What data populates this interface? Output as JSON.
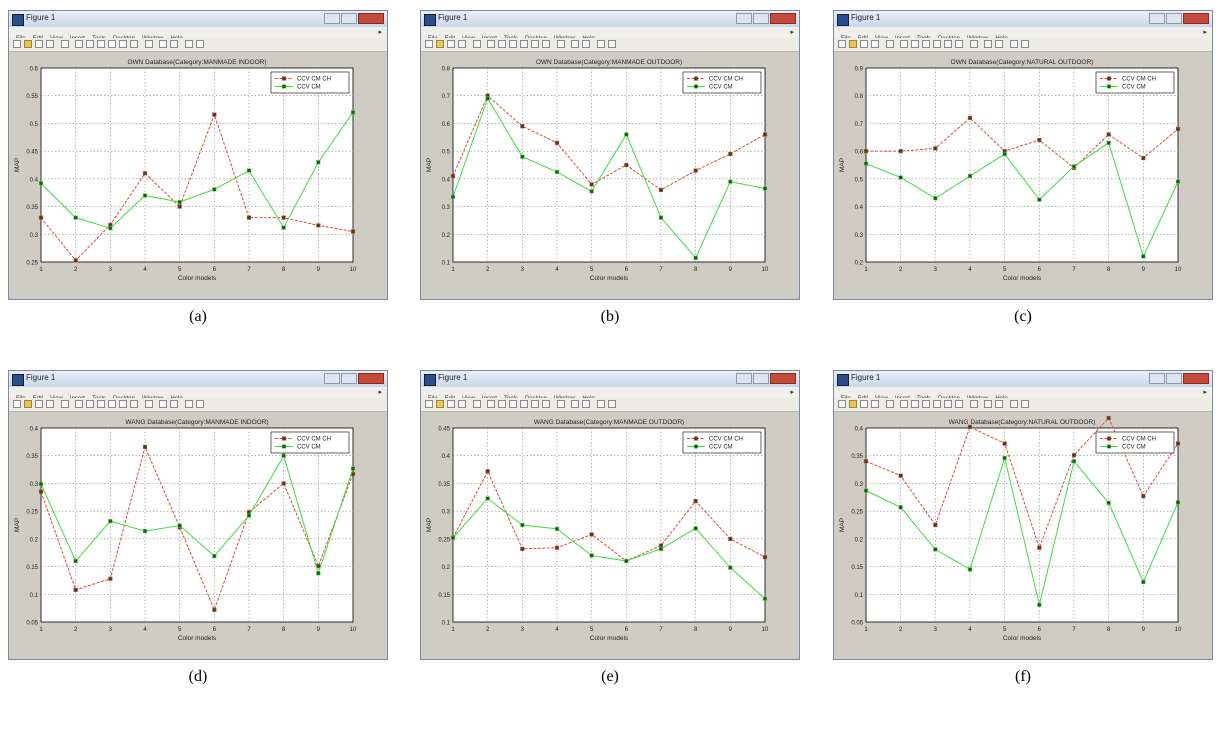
{
  "window_title": "Figure 1",
  "menu": [
    "File",
    "Edit",
    "View",
    "Insert",
    "Tools",
    "Desktop",
    "Window",
    "Help"
  ],
  "colors": {
    "red": "#d94c3a",
    "green": "#3fdc3f",
    "marker": "#2e4a22"
  },
  "panels": [
    {
      "caption": "(a)",
      "chart_data": {
        "type": "line",
        "title": "OWN Database(Category:MANMADE INDOOR)",
        "xlabel": "Color models",
        "ylabel": "MAP",
        "x": [
          1,
          2,
          3,
          4,
          5,
          6,
          7,
          8,
          9,
          10
        ],
        "xticks": [
          "1",
          "2",
          "3",
          "4",
          "5",
          "6",
          "7",
          "8",
          "9",
          "10"
        ],
        "yticks": [
          "0.25",
          "0.3",
          "0.35",
          "0.4",
          "0.45",
          "0.5",
          "0.55",
          "0.6"
        ],
        "ylim": [
          0.25,
          0.6
        ],
        "grid": true,
        "legend_position": "top-right",
        "series": [
          {
            "name": "CCV CM CH",
            "color": "red",
            "values": [
              0.33,
              0.253,
              0.317,
              0.41,
              0.35,
              0.516,
              0.33,
              0.33,
              0.316,
              0.305
            ]
          },
          {
            "name": "CCV CM",
            "color": "green",
            "values": [
              0.392,
              0.33,
              0.311,
              0.37,
              0.358,
              0.381,
              0.415,
              0.312,
              0.43,
              0.52
            ]
          }
        ]
      }
    },
    {
      "caption": "(b)",
      "chart_data": {
        "type": "line",
        "title": "OWN Database(Category:MANMADE OUTDOOR)",
        "xlabel": "Color models",
        "ylabel": "MAP",
        "x": [
          1,
          2,
          3,
          4,
          5,
          6,
          7,
          8,
          9,
          10
        ],
        "xticks": [
          "1",
          "2",
          "3",
          "4",
          "5",
          "6",
          "7",
          "8",
          "9",
          "10"
        ],
        "yticks": [
          "0.1",
          "0.2",
          "0.3",
          "0.4",
          "0.5",
          "0.6",
          "0.7",
          "0.8"
        ],
        "ylim": [
          0.1,
          0.8
        ],
        "grid": true,
        "legend_position": "top-right",
        "series": [
          {
            "name": "CCV CM CH",
            "color": "red",
            "values": [
              0.41,
              0.7,
              0.59,
              0.53,
              0.38,
              0.45,
              0.36,
              0.43,
              0.49,
              0.56
            ]
          },
          {
            "name": "CCV CM",
            "color": "green",
            "values": [
              0.335,
              0.69,
              0.48,
              0.425,
              0.355,
              0.56,
              0.26,
              0.115,
              0.39,
              0.365
            ]
          }
        ]
      }
    },
    {
      "caption": "(c)",
      "chart_data": {
        "type": "line",
        "title": "OWN Database(Category:NATURAL OUTDOOR)",
        "xlabel": "Color models",
        "ylabel": "MAP",
        "x": [
          1,
          2,
          3,
          4,
          5,
          6,
          7,
          8,
          9,
          10
        ],
        "xticks": [
          "1",
          "2",
          "3",
          "4",
          "5",
          "6",
          "7",
          "8",
          "9",
          "10"
        ],
        "yticks": [
          "0.2",
          "0.3",
          "0.4",
          "0.5",
          "0.6",
          "0.7",
          "0.8",
          "0.9"
        ],
        "ylim": [
          0.2,
          0.9
        ],
        "grid": true,
        "legend_position": "top-right",
        "series": [
          {
            "name": "CCV CM CH",
            "color": "red",
            "values": [
              0.6,
              0.6,
              0.61,
              0.72,
              0.6,
              0.64,
              0.54,
              0.66,
              0.575,
              0.68
            ]
          },
          {
            "name": "CCV CM",
            "color": "green",
            "values": [
              0.555,
              0.505,
              0.43,
              0.51,
              0.59,
              0.425,
              0.545,
              0.63,
              0.22,
              0.49
            ]
          }
        ]
      }
    },
    {
      "caption": "(d)",
      "chart_data": {
        "type": "line",
        "title": "WANG Database(Category:MANMADE INDOOR)",
        "xlabel": "Color models",
        "ylabel": "MAP",
        "x": [
          1,
          2,
          3,
          4,
          5,
          6,
          7,
          8,
          9,
          10
        ],
        "xticks": [
          "1",
          "2",
          "3",
          "4",
          "5",
          "6",
          "7",
          "8",
          "9",
          "10"
        ],
        "yticks": [
          "0.05",
          "0.1",
          "0.15",
          "0.2",
          "0.25",
          "0.3",
          "0.35",
          "0.4"
        ],
        "ylim": [
          0.05,
          0.4
        ],
        "grid": true,
        "legend_position": "top-right",
        "series": [
          {
            "name": "CCV CM CH",
            "color": "red",
            "values": [
              0.285,
              0.108,
              0.128,
              0.366,
              0.221,
              0.072,
              0.248,
              0.3,
              0.151,
              0.317
            ]
          },
          {
            "name": "CCV CM",
            "color": "green",
            "values": [
              0.299,
              0.16,
              0.232,
              0.214,
              0.224,
              0.169,
              0.242,
              0.35,
              0.138,
              0.327
            ]
          }
        ]
      }
    },
    {
      "caption": "(e)",
      "chart_data": {
        "type": "line",
        "title": "WANG Database(Category:MANMADE OUTDOOR)",
        "xlabel": "Color models",
        "ylabel": "MAP",
        "x": [
          1,
          2,
          3,
          4,
          5,
          6,
          7,
          8,
          9,
          10
        ],
        "xticks": [
          "1",
          "2",
          "3",
          "4",
          "5",
          "6",
          "7",
          "8",
          "9",
          "10"
        ],
        "yticks": [
          "0.1",
          "0.15",
          "0.2",
          "0.25",
          "0.3",
          "0.35",
          "0.4",
          "0.45"
        ],
        "ylim": [
          0.1,
          0.45
        ],
        "grid": true,
        "legend_position": "top-right",
        "series": [
          {
            "name": "CCV CM CH",
            "color": "red",
            "values": [
              0.252,
              0.372,
              0.232,
              0.234,
              0.258,
              0.21,
              0.238,
              0.318,
              0.25,
              0.217
            ]
          },
          {
            "name": "CCV CM",
            "color": "green",
            "values": [
              0.252,
              0.323,
              0.275,
              0.268,
              0.22,
              0.21,
              0.232,
              0.269,
              0.198,
              0.142
            ]
          }
        ]
      }
    },
    {
      "caption": "(f)",
      "chart_data": {
        "type": "line",
        "title": "WANG Database(Category:NATURAL OUTDOOR)",
        "xlabel": "Color models",
        "ylabel": "MAP",
        "x": [
          1,
          2,
          3,
          4,
          5,
          6,
          7,
          8,
          9,
          10
        ],
        "xticks": [
          "1",
          "2",
          "3",
          "4",
          "5",
          "6",
          "7",
          "8",
          "9",
          "10"
        ],
        "yticks": [
          "0.05",
          "0.1",
          "0.15",
          "0.2",
          "0.25",
          "0.3",
          "0.35",
          "0.4"
        ],
        "ylim": [
          0.05,
          0.4
        ],
        "grid": true,
        "legend_position": "top-right",
        "series": [
          {
            "name": "CCV CM CH",
            "color": "red",
            "values": [
              0.34,
              0.314,
              0.225,
              0.402,
              0.372,
              0.184,
              0.351,
              0.418,
              0.277,
              0.372
            ]
          },
          {
            "name": "CCV CM",
            "color": "green",
            "values": [
              0.287,
              0.257,
              0.181,
              0.145,
              0.346,
              0.081,
              0.34,
              0.265,
              0.122,
              0.266
            ]
          }
        ]
      }
    }
  ]
}
